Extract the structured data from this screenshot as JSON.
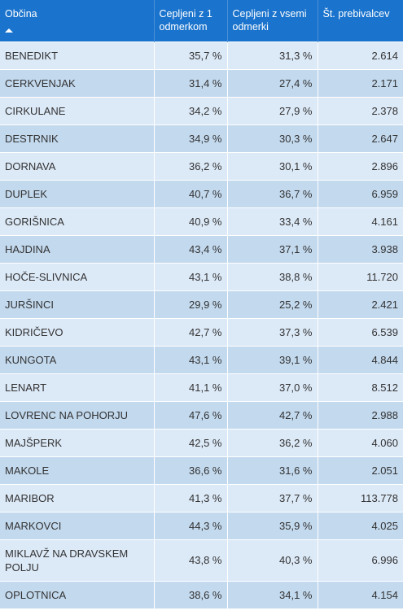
{
  "table": {
    "headers": {
      "municipality": "Občina",
      "one_dose": "Cepljeni z 1 odmerkom",
      "all_doses": "Cepljeni z vsemi odmerki",
      "population": "Št. prebivalcev"
    },
    "rows": [
      {
        "name": "BENEDIKT",
        "one_dose": "35,7 %",
        "all_doses": "31,3 %",
        "population": "2.614"
      },
      {
        "name": "CERKVENJAK",
        "one_dose": "31,4 %",
        "all_doses": "27,4 %",
        "population": "2.171"
      },
      {
        "name": "CIRKULANE",
        "one_dose": "34,2 %",
        "all_doses": "27,9 %",
        "population": "2.378"
      },
      {
        "name": "DESTRNIK",
        "one_dose": "34,9 %",
        "all_doses": "30,3 %",
        "population": "2.647"
      },
      {
        "name": "DORNAVA",
        "one_dose": "36,2 %",
        "all_doses": "30,1 %",
        "population": "2.896"
      },
      {
        "name": "DUPLEK",
        "one_dose": "40,7 %",
        "all_doses": "36,7 %",
        "population": "6.959"
      },
      {
        "name": "GORIŠNICA",
        "one_dose": "40,9 %",
        "all_doses": "33,4 %",
        "population": "4.161"
      },
      {
        "name": "HAJDINA",
        "one_dose": "43,4 %",
        "all_doses": "37,1 %",
        "population": "3.938"
      },
      {
        "name": "HOČE-SLIVNICA",
        "one_dose": "43,1 %",
        "all_doses": "38,8 %",
        "population": "11.720"
      },
      {
        "name": "JURŠINCI",
        "one_dose": "29,9 %",
        "all_doses": "25,2 %",
        "population": "2.421"
      },
      {
        "name": "KIDRIČEVO",
        "one_dose": "42,7 %",
        "all_doses": "37,3 %",
        "population": "6.539"
      },
      {
        "name": "KUNGOTA",
        "one_dose": "43,1 %",
        "all_doses": "39,1 %",
        "population": "4.844"
      },
      {
        "name": "LENART",
        "one_dose": "41,1 %",
        "all_doses": "37,0 %",
        "population": "8.512"
      },
      {
        "name": "LOVRENC NA POHORJU",
        "one_dose": "47,6 %",
        "all_doses": "42,7 %",
        "population": "2.988"
      },
      {
        "name": "MAJŠPERK",
        "one_dose": "42,5 %",
        "all_doses": "36,2 %",
        "population": "4.060"
      },
      {
        "name": "MAKOLE",
        "one_dose": "36,6 %",
        "all_doses": "31,6 %",
        "population": "2.051"
      },
      {
        "name": "MARIBOR",
        "one_dose": "41,3 %",
        "all_doses": "37,7 %",
        "population": "113.778"
      },
      {
        "name": "MARKOVCI",
        "one_dose": "44,3 %",
        "all_doses": "35,9 %",
        "population": "4.025"
      },
      {
        "name": "MIKLAVŽ NA DRAVSKEM POLJU",
        "one_dose": "43,8 %",
        "all_doses": "40,3 %",
        "population": "6.996",
        "tall": true
      },
      {
        "name": "OPLOTNICA",
        "one_dose": "38,6 %",
        "all_doses": "34,1 %",
        "population": "4.154"
      }
    ]
  },
  "colors": {
    "header_bg": "#1a73cc",
    "row_light": "#dce9f7",
    "row_dark": "#c3d9ee"
  },
  "icons": {
    "sort": "sort-ascending-icon"
  }
}
